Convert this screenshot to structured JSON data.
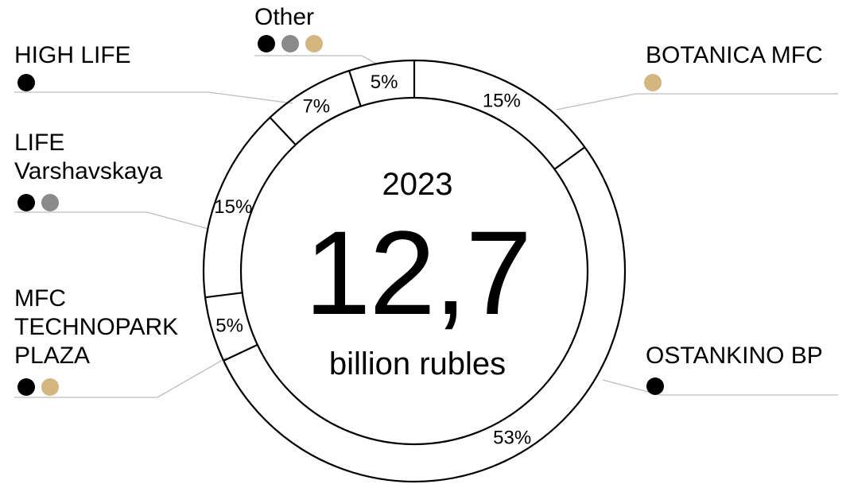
{
  "colors": {
    "black": "#000000",
    "gray": "#8a8a8a",
    "gold": "#d4b77f"
  },
  "center": {
    "year": "2023",
    "value": "12,7",
    "unit": "billion rubles"
  },
  "chart_data": {
    "type": "pie",
    "variant": "donut",
    "title": "",
    "slices": [
      {
        "label": "BOTANICA MFC",
        "value": 15,
        "value_label": "15%",
        "dots": [
          "gold"
        ]
      },
      {
        "label": "OSTANKINO BP",
        "value": 53,
        "value_label": "53%",
        "dots": [
          "black"
        ]
      },
      {
        "label": "MFC TECHNOPARK PLAZA",
        "value": 5,
        "value_label": "5%",
        "dots": [
          "black",
          "gold"
        ]
      },
      {
        "label": "LIFE Varshavskaya",
        "value": 15,
        "value_label": "15%",
        "dots": [
          "black",
          "gray"
        ]
      },
      {
        "label": "HIGH LIFE",
        "value": 7,
        "value_label": "7%",
        "dots": [
          "black"
        ]
      },
      {
        "label": "Other",
        "value": 5,
        "value_label": "5%",
        "dots": [
          "black",
          "gray",
          "gold"
        ]
      }
    ]
  }
}
